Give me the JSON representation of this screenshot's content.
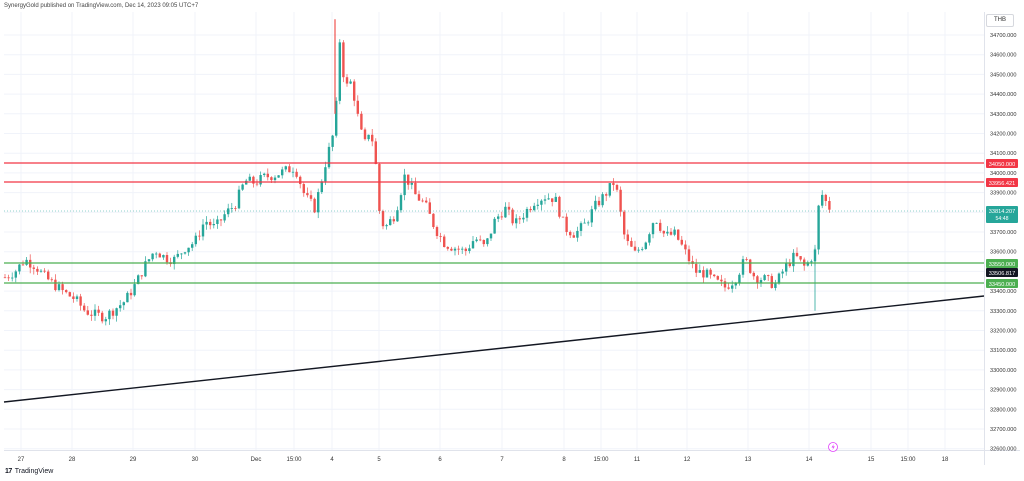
{
  "header": {
    "published_by": "SynergyGold published on TradingView.com, Dec 14, 2023 09:05 UTC+7"
  },
  "price_axis": {
    "unit": "THB",
    "ticks": [
      "34700.000",
      "34600.000",
      "34500.000",
      "34400.000",
      "34300.000",
      "34200.000",
      "34100.000",
      "34000.000",
      "33900.000",
      "33800.000",
      "33700.000",
      "33600.000",
      "33500.000",
      "33400.000",
      "33300.000",
      "33200.000",
      "33100.000",
      "33000.000",
      "32900.000",
      "32800.000",
      "32700.000",
      "32600.000"
    ]
  },
  "time_axis": {
    "labels": [
      "27",
      "28",
      "29",
      "30",
      "Dec",
      "15:00",
      "4",
      "5",
      "6",
      "7",
      "8",
      "15:00",
      "11",
      "12",
      "13",
      "14",
      "15",
      "15:00",
      "18"
    ]
  },
  "badges": {
    "resistance_upper": "34050.000",
    "resistance_lower": "33956.421",
    "last_price": "33814.207",
    "countdown": "54:48",
    "support_upper": "33550.000",
    "crosshair_price": "33506.817",
    "support_lower": "33450.000"
  },
  "colors": {
    "up": "#26a69a",
    "down": "#ef5350",
    "resistance": "#f23645",
    "support": "#4caf50",
    "trendline": "#131722",
    "grid": "#f0f3fa"
  },
  "footer": {
    "brand": "TradingView"
  },
  "chart_data": {
    "type": "candlestick",
    "symbol_unit": "THB",
    "ylim": [
      32580,
      34780
    ],
    "horizontal_levels": [
      {
        "kind": "resistance",
        "value": 34050.0
      },
      {
        "kind": "resistance",
        "value": 33956.421
      },
      {
        "kind": "support",
        "value": 33550.0
      },
      {
        "kind": "support",
        "value": 33450.0
      }
    ],
    "trendline": {
      "from": {
        "x": "Nov 27",
        "y": 32860
      },
      "to": {
        "x": "Dec 14 right edge",
        "y": 33395
      }
    },
    "last_price": 33814.207,
    "anchors": [
      [
        0,
        33470
      ],
      [
        10,
        33500
      ],
      [
        20,
        33560
      ],
      [
        30,
        33530
      ],
      [
        40,
        33470
      ],
      [
        50,
        33430
      ],
      [
        60,
        33390
      ],
      [
        70,
        33360
      ],
      [
        80,
        33300
      ],
      [
        90,
        33280
      ],
      [
        100,
        33270
      ],
      [
        110,
        33310
      ],
      [
        120,
        33350
      ],
      [
        130,
        33430
      ],
      [
        140,
        33530
      ],
      [
        150,
        33610
      ],
      [
        160,
        33570
      ],
      [
        170,
        33560
      ],
      [
        180,
        33620
      ],
      [
        190,
        33650
      ],
      [
        200,
        33760
      ],
      [
        210,
        33720
      ],
      [
        220,
        33790
      ],
      [
        230,
        33840
      ],
      [
        240,
        33960
      ],
      [
        250,
        33950
      ],
      [
        260,
        33980
      ],
      [
        270,
        33990
      ],
      [
        280,
        34010
      ],
      [
        290,
        34030
      ],
      [
        300,
        33880
      ],
      [
        310,
        33820
      ],
      [
        320,
        34040
      ],
      [
        330,
        34230
      ],
      [
        335,
        34690
      ],
      [
        340,
        34420
      ],
      [
        345,
        34470
      ],
      [
        350,
        34370
      ],
      [
        355,
        34220
      ],
      [
        360,
        34150
      ],
      [
        365,
        34230
      ],
      [
        370,
        34090
      ],
      [
        375,
        33770
      ],
      [
        380,
        33720
      ],
      [
        390,
        33790
      ],
      [
        400,
        33990
      ],
      [
        410,
        33890
      ],
      [
        420,
        33840
      ],
      [
        430,
        33720
      ],
      [
        440,
        33640
      ],
      [
        450,
        33620
      ],
      [
        460,
        33600
      ],
      [
        470,
        33670
      ],
      [
        480,
        33620
      ],
      [
        490,
        33760
      ],
      [
        500,
        33820
      ],
      [
        510,
        33740
      ],
      [
        520,
        33800
      ],
      [
        530,
        33860
      ],
      [
        540,
        33880
      ],
      [
        550,
        33870
      ],
      [
        560,
        33720
      ],
      [
        570,
        33690
      ],
      [
        580,
        33740
      ],
      [
        590,
        33830
      ],
      [
        600,
        33890
      ],
      [
        610,
        33960
      ],
      [
        620,
        33660
      ],
      [
        630,
        33590
      ],
      [
        640,
        33650
      ],
      [
        650,
        33780
      ],
      [
        660,
        33680
      ],
      [
        670,
        33690
      ],
      [
        680,
        33600
      ],
      [
        690,
        33500
      ],
      [
        700,
        33490
      ],
      [
        710,
        33450
      ],
      [
        720,
        33420
      ],
      [
        730,
        33460
      ],
      [
        740,
        33560
      ],
      [
        750,
        33470
      ],
      [
        760,
        33460
      ],
      [
        770,
        33430
      ],
      [
        780,
        33520
      ],
      [
        790,
        33580
      ],
      [
        800,
        33520
      ],
      [
        810,
        33600
      ],
      [
        815,
        33910
      ],
      [
        820,
        33860
      ],
      [
        825,
        33820
      ],
      [
        832,
        33814
      ]
    ]
  }
}
